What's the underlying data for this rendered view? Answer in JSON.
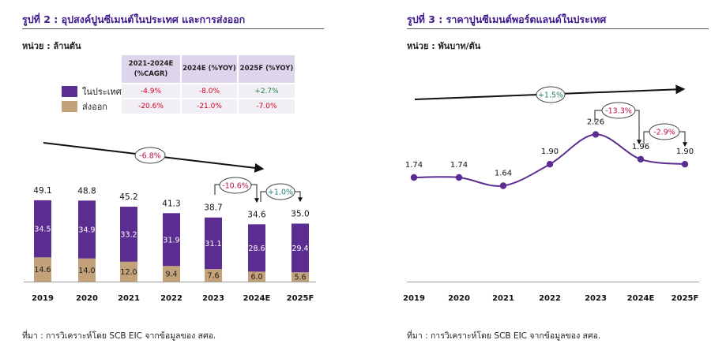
{
  "left": {
    "title": "รูปที่ 2 : อุปสงค์ปูนซีเมนต์ในประเทศ และการส่งออก",
    "unit": "หน่วย : ล้านตัน",
    "source": "ที่มา : การวิเคราะห์โดย SCB EIC จากข้อมูลของ สศอ.",
    "table": {
      "headers": [
        "2021-2024E (%CAGR)",
        "2024E (%YOY)",
        "2025F (%YOY)"
      ],
      "rows": [
        {
          "label": "ในประเทศ",
          "values": [
            "-4.9%",
            "-8.0%",
            "+2.7%"
          ]
        },
        {
          "label": "ส่งออก",
          "values": [
            "-20.6%",
            "-21.0%",
            "-7.0%"
          ]
        }
      ]
    }
  },
  "right": {
    "title": "รูปที่ 3 : ราคาปูนซีเมนต์พอร์ตแลนด์ในประเทศ",
    "unit": "หน่วย : พันบาท/ตัน",
    "source": "ที่มา : การวิเคราะห์โดย SCB EIC จากข้อมูลของ สศอ."
  },
  "chart_data": [
    {
      "type": "bar",
      "stacked": true,
      "categories": [
        "2019",
        "2020",
        "2021",
        "2022",
        "2023",
        "2024E",
        "2025F"
      ],
      "series": [
        {
          "name": "ส่งออก",
          "values": [
            14.6,
            14.0,
            12.0,
            9.4,
            7.6,
            6.0,
            5.6
          ],
          "color": "#c3a27a"
        },
        {
          "name": "ในประเทศ",
          "values": [
            34.5,
            34.9,
            33.2,
            31.9,
            31.1,
            28.6,
            29.4
          ],
          "color": "#5b2d90"
        }
      ],
      "totals": [
        49.1,
        48.8,
        45.2,
        41.3,
        38.7,
        34.6,
        35.0
      ],
      "annotations": [
        {
          "text": "-6.8%",
          "color": "#c0104f"
        },
        {
          "text": "-10.6%",
          "color": "#c0104f"
        },
        {
          "text": "+1.0%",
          "color": "#1a7f6e"
        }
      ],
      "grid": false,
      "legend": "top-left"
    },
    {
      "type": "line",
      "categories": [
        "2019",
        "2020",
        "2021",
        "2022",
        "2023",
        "2024E",
        "2025F"
      ],
      "values": [
        1.74,
        1.74,
        1.64,
        1.9,
        2.26,
        1.96,
        1.9
      ],
      "color": "#5b2d90",
      "annotations": [
        {
          "text": "+1.5%",
          "color": "#1a7f6e"
        },
        {
          "text": "-13.3%",
          "color": "#c0104f"
        },
        {
          "text": "-2.9%",
          "color": "#c0104f"
        }
      ],
      "grid": false
    }
  ]
}
